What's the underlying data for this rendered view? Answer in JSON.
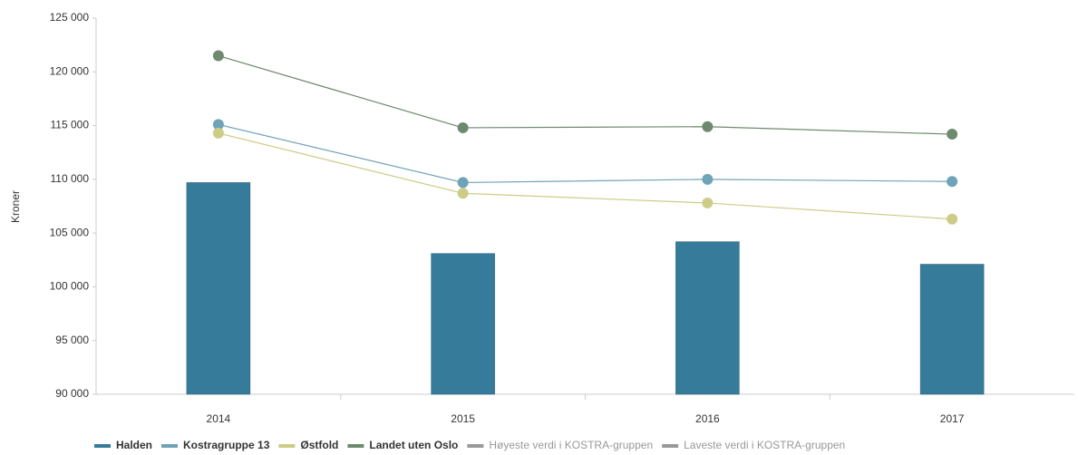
{
  "chart_data": {
    "type": "bar",
    "y_axis_label": "Kroner",
    "categories": [
      "2014",
      "2015",
      "2016",
      "2017"
    ],
    "ylim": [
      90000,
      125000
    ],
    "yticks": [
      {
        "value": 90000,
        "label": "90 000"
      },
      {
        "value": 95000,
        "label": "95 000"
      },
      {
        "value": 100000,
        "label": "100 000"
      },
      {
        "value": 105000,
        "label": "105 000"
      },
      {
        "value": 110000,
        "label": "110 000"
      },
      {
        "value": 115000,
        "label": "115 000"
      },
      {
        "value": 120000,
        "label": "120 000"
      },
      {
        "value": 125000,
        "label": "125 000"
      }
    ],
    "series": [
      {
        "name": "Halden",
        "type": "bar",
        "color": "#367b9a",
        "values": [
          109700,
          103100,
          104200,
          102100
        ]
      },
      {
        "name": "Kostragruppe 13",
        "type": "line",
        "color": "#6fa3b8",
        "values": [
          115100,
          109700,
          110000,
          109800
        ]
      },
      {
        "name": "Østfold",
        "type": "line",
        "color": "#cccc88",
        "values": [
          114300,
          108700,
          107800,
          106300
        ]
      },
      {
        "name": "Landet uten Oslo",
        "type": "line",
        "color": "#6e8a6e",
        "values": [
          121500,
          114800,
          114900,
          114200
        ]
      },
      {
        "name": "Høyeste verdi i KOSTRA-gruppen",
        "type": "line",
        "color": "#999999",
        "hidden": true,
        "values": [
          null,
          null,
          null,
          null
        ]
      },
      {
        "name": "Laveste verdi i KOSTRA-gruppen",
        "type": "line",
        "color": "#999999",
        "hidden": true,
        "values": [
          null,
          null,
          null,
          null
        ]
      }
    ]
  }
}
